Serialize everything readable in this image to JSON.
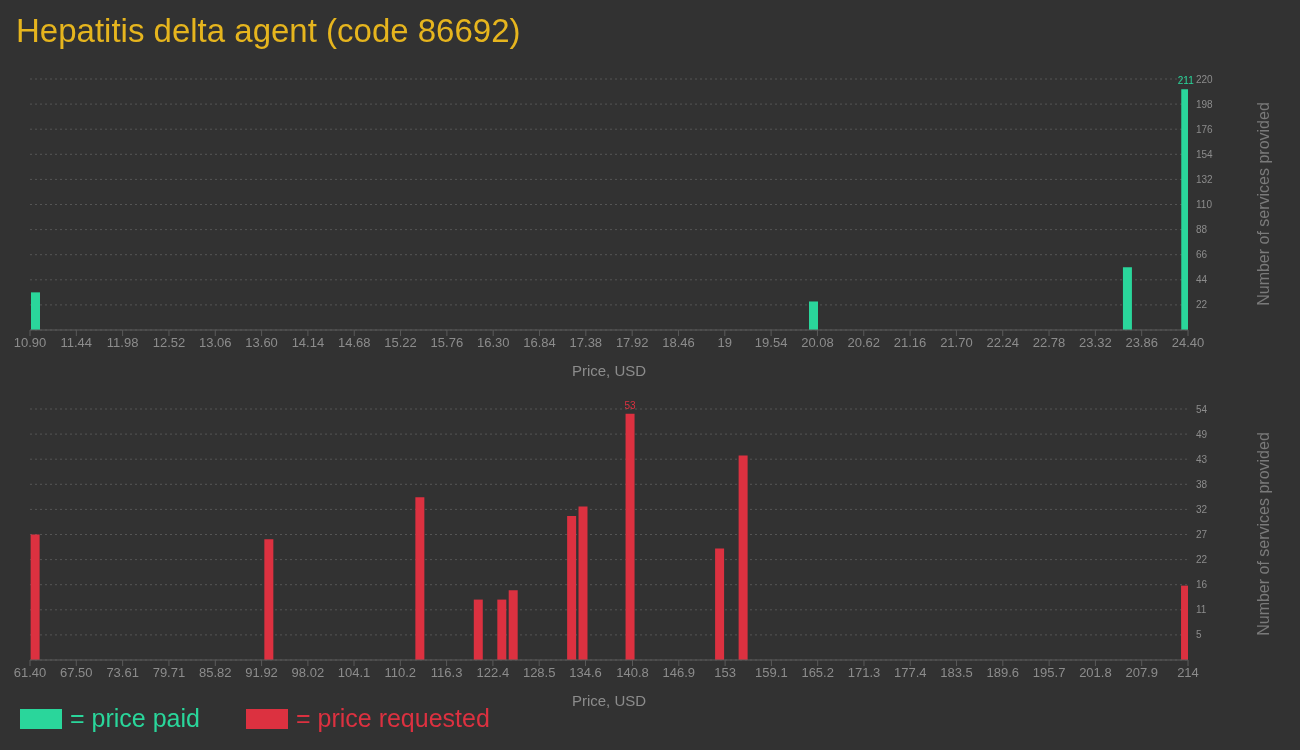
{
  "chart_data": [
    {
      "type": "bar",
      "title": "Hepatitis delta agent (code 86692)",
      "xlabel": "Price, USD",
      "ylabel": "Number of services provided",
      "x": [
        10.96,
        20.03,
        23.69,
        24.37
      ],
      "series": [
        {
          "name": "= price paid",
          "color": "#2ad69b",
          "values": [
            33,
            25,
            55,
            211
          ],
          "value_labels": [
            null,
            null,
            null,
            "211"
          ]
        }
      ],
      "xlim": [
        10.9,
        24.4
      ],
      "xticks": [
        {
          "value": 10.9,
          "label": "10.90"
        },
        {
          "value": 11.44,
          "label": "11.44"
        },
        {
          "value": 11.98,
          "label": "11.98"
        },
        {
          "value": 12.52,
          "label": "12.52"
        },
        {
          "value": 13.06,
          "label": "13.06"
        },
        {
          "value": 13.6,
          "label": "13.60"
        },
        {
          "value": 14.14,
          "label": "14.14"
        },
        {
          "value": 14.68,
          "label": "14.68"
        },
        {
          "value": 15.22,
          "label": "15.22"
        },
        {
          "value": 15.76,
          "label": "15.76"
        },
        {
          "value": 16.3,
          "label": "16.30"
        },
        {
          "value": 16.84,
          "label": "16.84"
        },
        {
          "value": 17.38,
          "label": "17.38"
        },
        {
          "value": 17.92,
          "label": "17.92"
        },
        {
          "value": 18.46,
          "label": "18.46"
        },
        {
          "value": 19,
          "label": "19"
        },
        {
          "value": 19.54,
          "label": "19.54"
        },
        {
          "value": 20.08,
          "label": "20.08"
        },
        {
          "value": 20.62,
          "label": "20.62"
        },
        {
          "value": 21.16,
          "label": "21.16"
        },
        {
          "value": 21.7,
          "label": "21.70"
        },
        {
          "value": 22.24,
          "label": "22.24"
        },
        {
          "value": 22.78,
          "label": "22.78"
        },
        {
          "value": 23.32,
          "label": "23.32"
        },
        {
          "value": 23.86,
          "label": "23.86"
        },
        {
          "value": 24.4,
          "label": "24.40"
        }
      ],
      "ylim": [
        0,
        220
      ],
      "yticks": [
        22,
        44,
        66,
        88,
        110,
        132,
        154,
        176,
        198,
        220
      ],
      "grid": "y",
      "legend": "bottom left"
    },
    {
      "type": "bar",
      "xlabel": "Price, USD",
      "ylabel": "Number of services provided",
      "x": [
        62.1,
        92.9,
        112.8,
        120.5,
        123.6,
        125.1,
        132.8,
        134.3,
        140.5,
        152.3,
        155.4,
        213.7
      ],
      "series": [
        {
          "name": "= price requested",
          "color": "#dc3140",
          "values": [
            27,
            26,
            35,
            13,
            13,
            15,
            31,
            33,
            53,
            24,
            44,
            16
          ],
          "value_labels": [
            null,
            null,
            null,
            null,
            null,
            null,
            null,
            null,
            "53",
            null,
            null,
            null
          ]
        }
      ],
      "xlim": [
        61.4,
        214
      ],
      "xticks": [
        {
          "value": 61.4,
          "label": "61.40"
        },
        {
          "value": 67.5,
          "label": "67.50"
        },
        {
          "value": 73.61,
          "label": "73.61"
        },
        {
          "value": 79.71,
          "label": "79.71"
        },
        {
          "value": 85.82,
          "label": "85.82"
        },
        {
          "value": 91.92,
          "label": "91.92"
        },
        {
          "value": 98.02,
          "label": "98.02"
        },
        {
          "value": 104.1,
          "label": "104.1"
        },
        {
          "value": 110.2,
          "label": "110.2"
        },
        {
          "value": 116.3,
          "label": "116.3"
        },
        {
          "value": 122.4,
          "label": "122.4"
        },
        {
          "value": 128.5,
          "label": "128.5"
        },
        {
          "value": 134.6,
          "label": "134.6"
        },
        {
          "value": 140.8,
          "label": "140.8"
        },
        {
          "value": 146.9,
          "label": "146.9"
        },
        {
          "value": 153,
          "label": "153"
        },
        {
          "value": 159.1,
          "label": "159.1"
        },
        {
          "value": 165.2,
          "label": "165.2"
        },
        {
          "value": 171.3,
          "label": "171.3"
        },
        {
          "value": 177.4,
          "label": "177.4"
        },
        {
          "value": 183.5,
          "label": "183.5"
        },
        {
          "value": 189.6,
          "label": "189.6"
        },
        {
          "value": 195.7,
          "label": "195.7"
        },
        {
          "value": 201.8,
          "label": "201.8"
        },
        {
          "value": 207.9,
          "label": "207.9"
        },
        {
          "value": 214,
          "label": "214"
        }
      ],
      "ylim": [
        0,
        54
      ],
      "yticks": [
        {
          "value": 5.4,
          "label": "5"
        },
        {
          "value": 10.8,
          "label": "11"
        },
        {
          "value": 16.2,
          "label": "16"
        },
        {
          "value": 21.6,
          "label": "22"
        },
        {
          "value": 27,
          "label": "27"
        },
        {
          "value": 32.4,
          "label": "32"
        },
        {
          "value": 37.8,
          "label": "38"
        },
        {
          "value": 43.2,
          "label": "43"
        },
        {
          "value": 48.6,
          "label": "49"
        },
        {
          "value": 54,
          "label": "54"
        }
      ],
      "grid": "y",
      "legend": "bottom left"
    }
  ]
}
